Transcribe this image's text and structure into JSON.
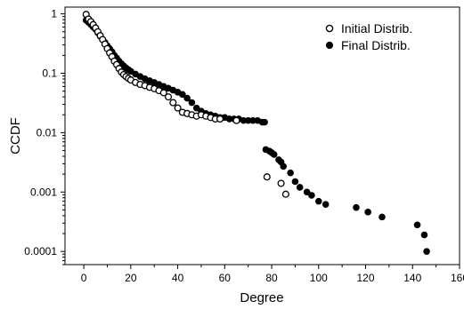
{
  "chart_data": {
    "type": "scatter",
    "xlabel": "Degree",
    "ylabel": "CCDF",
    "xlim": [
      -8,
      160
    ],
    "ylim": [
      6e-05,
      1.3
    ],
    "yscale": "log",
    "x_ticks": [
      0,
      20,
      40,
      60,
      80,
      100,
      120,
      140,
      160
    ],
    "x_tick_labels": [
      "0",
      "20",
      "40",
      "60",
      "80",
      "100",
      "120",
      "140",
      "160"
    ],
    "y_ticks": [
      1,
      0.1,
      0.01,
      0.001,
      0.0001
    ],
    "y_tick_labels": [
      "1",
      "0.1",
      "0.01",
      "0.001",
      "0.0001"
    ],
    "grid": false,
    "legend_position": "top-right",
    "series": [
      {
        "name": "Initial Distrib.",
        "marker": "open-circle",
        "color": "#000000",
        "points": [
          [
            1,
            0.98
          ],
          [
            2,
            0.82
          ],
          [
            3,
            0.74
          ],
          [
            4,
            0.66
          ],
          [
            5,
            0.58
          ],
          [
            6,
            0.5
          ],
          [
            7,
            0.43
          ],
          [
            8,
            0.37
          ],
          [
            9,
            0.31
          ],
          [
            10,
            0.26
          ],
          [
            11,
            0.22
          ],
          [
            12,
            0.19
          ],
          [
            13,
            0.16
          ],
          [
            14,
            0.14
          ],
          [
            15,
            0.12
          ],
          [
            16,
            0.105
          ],
          [
            17,
            0.095
          ],
          [
            18,
            0.088
          ],
          [
            19,
            0.082
          ],
          [
            20,
            0.077
          ],
          [
            22,
            0.07
          ],
          [
            24,
            0.065
          ],
          [
            26,
            0.062
          ],
          [
            28,
            0.058
          ],
          [
            30,
            0.055
          ],
          [
            32,
            0.051
          ],
          [
            34,
            0.047
          ],
          [
            36,
            0.04
          ],
          [
            38,
            0.032
          ],
          [
            40,
            0.026
          ],
          [
            42,
            0.022
          ],
          [
            44,
            0.021
          ],
          [
            46,
            0.02
          ],
          [
            48,
            0.019
          ],
          [
            50,
            0.02
          ],
          [
            52,
            0.019
          ],
          [
            54,
            0.018
          ],
          [
            56,
            0.017
          ],
          [
            58,
            0.017
          ],
          [
            65,
            0.016
          ],
          [
            78,
            0.0018
          ],
          [
            84,
            0.0014
          ],
          [
            86,
            0.00092
          ]
        ]
      },
      {
        "name": "Final Distrib.",
        "marker": "filled-circle",
        "color": "#000000",
        "points": [
          [
            1,
            0.78
          ],
          [
            2,
            0.72
          ],
          [
            3,
            0.66
          ],
          [
            4,
            0.6
          ],
          [
            5,
            0.55
          ],
          [
            6,
            0.48
          ],
          [
            7,
            0.42
          ],
          [
            8,
            0.37
          ],
          [
            9,
            0.33
          ],
          [
            10,
            0.29
          ],
          [
            11,
            0.26
          ],
          [
            12,
            0.23
          ],
          [
            13,
            0.2
          ],
          [
            14,
            0.18
          ],
          [
            15,
            0.16
          ],
          [
            16,
            0.145
          ],
          [
            17,
            0.133
          ],
          [
            18,
            0.123
          ],
          [
            19,
            0.115
          ],
          [
            20,
            0.108
          ],
          [
            22,
            0.097
          ],
          [
            24,
            0.088
          ],
          [
            26,
            0.081
          ],
          [
            28,
            0.075
          ],
          [
            30,
            0.07
          ],
          [
            32,
            0.065
          ],
          [
            34,
            0.06
          ],
          [
            36,
            0.056
          ],
          [
            38,
            0.052
          ],
          [
            40,
            0.048
          ],
          [
            42,
            0.044
          ],
          [
            44,
            0.038
          ],
          [
            46,
            0.032
          ],
          [
            48,
            0.026
          ],
          [
            50,
            0.023
          ],
          [
            52,
            0.021
          ],
          [
            54,
            0.02
          ],
          [
            56,
            0.019
          ],
          [
            58,
            0.018
          ],
          [
            60,
            0.018
          ],
          [
            62,
            0.017
          ],
          [
            64,
            0.017
          ],
          [
            66,
            0.017
          ],
          [
            68,
            0.016
          ],
          [
            70,
            0.016
          ],
          [
            72,
            0.016
          ],
          [
            74,
            0.016
          ],
          [
            76,
            0.015
          ],
          [
            77,
            0.015
          ],
          [
            77.5,
            0.0052
          ],
          [
            79,
            0.0049
          ],
          [
            80,
            0.0046
          ],
          [
            81,
            0.0043
          ],
          [
            83,
            0.0035
          ],
          [
            84,
            0.0032
          ],
          [
            85,
            0.0027
          ],
          [
            88,
            0.0021
          ],
          [
            90,
            0.0015
          ],
          [
            92,
            0.0012
          ],
          [
            95,
            0.001
          ],
          [
            97,
            0.00088
          ],
          [
            100,
            0.0007
          ],
          [
            103,
            0.00062
          ],
          [
            116,
            0.00055
          ],
          [
            121,
            0.00046
          ],
          [
            127,
            0.00038
          ],
          [
            142,
            0.00028
          ],
          [
            145,
            0.00019
          ],
          [
            146,
            0.0001
          ]
        ]
      }
    ]
  }
}
